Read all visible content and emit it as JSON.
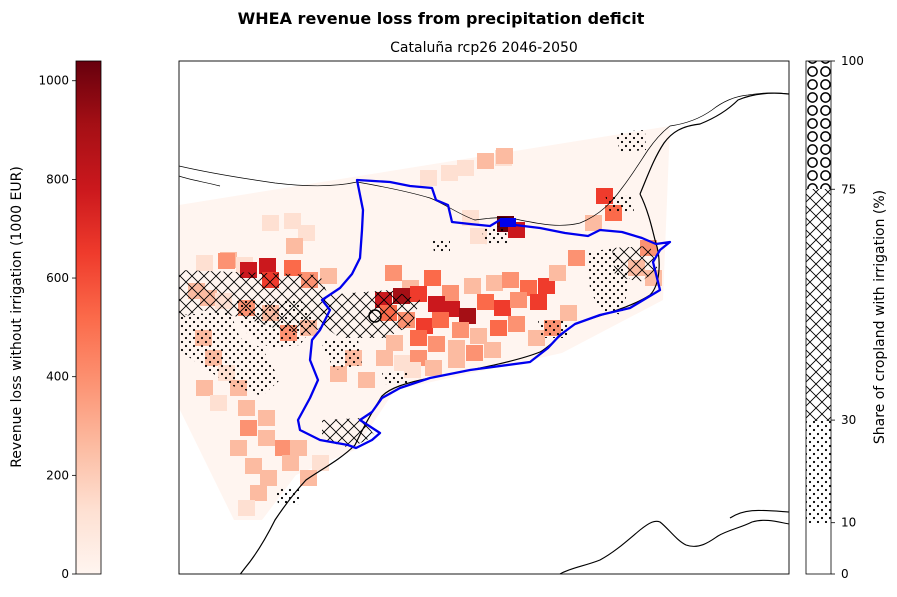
{
  "figure": {
    "title": "WHEA revenue loss from precipitation deficit",
    "subtitle": "Cataluña rcp26 2046-2050"
  },
  "left_colorbar": {
    "label": "Revenue loss without irrigation (1000 EUR)",
    "range": [
      0,
      1040
    ],
    "colormap": "Reds",
    "ticks": [
      {
        "value": 0,
        "label": "0"
      },
      {
        "value": 200,
        "label": "200"
      },
      {
        "value": 400,
        "label": "400"
      },
      {
        "value": 600,
        "label": "600"
      },
      {
        "value": 800,
        "label": "800"
      },
      {
        "value": 1000,
        "label": "1000"
      }
    ]
  },
  "right_colorbar": {
    "label": "Share of cropland with irrigation (%)",
    "range": [
      0,
      100
    ],
    "ticks": [
      {
        "value": 0,
        "label": "0"
      },
      {
        "value": 10,
        "label": "10"
      },
      {
        "value": 30,
        "label": "30"
      },
      {
        "value": 75,
        "label": "75"
      },
      {
        "value": 100,
        "label": "100"
      }
    ],
    "bands": [
      {
        "from": 0,
        "to": 10,
        "pattern": "none"
      },
      {
        "from": 10,
        "to": 30,
        "pattern": "dots"
      },
      {
        "from": 30,
        "to": 75,
        "pattern": "crosshatch"
      },
      {
        "from": 75,
        "to": 100,
        "pattern": "circles"
      }
    ]
  },
  "map": {
    "region": "Cataluña",
    "colors": {
      "boundary": "#0000ee",
      "coast": "#000000",
      "frame": "#000000"
    }
  }
}
